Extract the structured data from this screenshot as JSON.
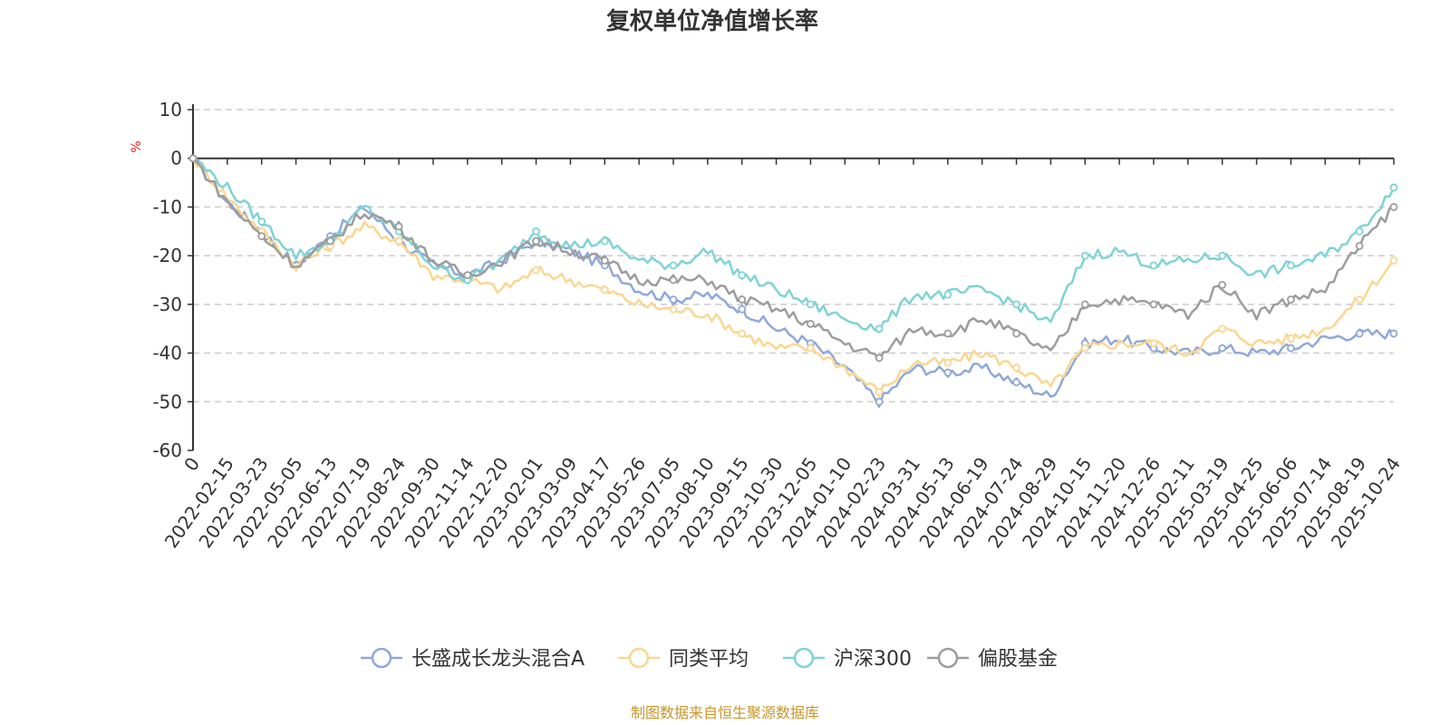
{
  "chart_data": {
    "type": "line",
    "title": "复权单位净值增长率",
    "ylabel": "%",
    "ylim": [
      -60,
      10
    ],
    "yticks": [
      10,
      0,
      -10,
      -20,
      -30,
      -40,
      -50,
      -60
    ],
    "categories": [
      "0",
      "2022-02-15",
      "2022-03-23",
      "2022-05-05",
      "2022-06-13",
      "2022-07-19",
      "2022-08-24",
      "2022-09-30",
      "2022-11-14",
      "2022-12-20",
      "2023-02-01",
      "2023-03-09",
      "2023-04-17",
      "2023-05-26",
      "2023-07-05",
      "2023-08-10",
      "2023-09-15",
      "2023-10-30",
      "2023-12-05",
      "2024-01-10",
      "2024-02-23",
      "2024-03-31",
      "2024-05-13",
      "2024-06-19",
      "2024-07-24",
      "2024-08-29",
      "2024-10-15",
      "2024-11-20",
      "2024-12-26",
      "2025-02-11",
      "2025-03-19",
      "2025-04-25",
      "2025-06-06",
      "2025-07-14",
      "2025-08-19",
      "2025-10-24"
    ],
    "grid": true,
    "legend_position": "bottom",
    "series": [
      {
        "name": "长盛成长龙头混合A",
        "color": "#8fa9d8",
        "values": [
          0,
          -9,
          -15,
          -22,
          -16,
          -10,
          -17,
          -22,
          -24,
          -21,
          -17,
          -19,
          -22,
          -27,
          -29,
          -28,
          -31,
          -35,
          -38,
          -43,
          -50,
          -43,
          -44,
          -43,
          -46,
          -49,
          -38,
          -37,
          -39,
          -40,
          -39,
          -40,
          -39,
          -37,
          -36,
          -36
        ]
      },
      {
        "name": "同类平均",
        "color": "#fbd690",
        "values": [
          0,
          -8,
          -15,
          -22,
          -18,
          -14,
          -17,
          -24,
          -25,
          -27,
          -23,
          -25,
          -27,
          -30,
          -31,
          -32,
          -36,
          -39,
          -39,
          -43,
          -48,
          -42,
          -42,
          -40,
          -43,
          -47,
          -39,
          -38,
          -38,
          -40,
          -35,
          -38,
          -37,
          -35,
          -29,
          -21
        ]
      },
      {
        "name": "沪深300",
        "color": "#7fd3d6",
        "values": [
          0,
          -6,
          -13,
          -20,
          -17,
          -10,
          -15,
          -22,
          -25,
          -21,
          -15,
          -18,
          -17,
          -21,
          -22,
          -19,
          -24,
          -27,
          -30,
          -33,
          -35,
          -28,
          -28,
          -27,
          -30,
          -34,
          -20,
          -19,
          -22,
          -21,
          -20,
          -24,
          -22,
          -20,
          -15,
          -6
        ]
      },
      {
        "name": "偏股基金",
        "color": "#9d9d9d",
        "values": [
          0,
          -9,
          -16,
          -22,
          -17,
          -11,
          -14,
          -21,
          -24,
          -21,
          -17,
          -19,
          -21,
          -25,
          -25,
          -25,
          -29,
          -31,
          -34,
          -38,
          -41,
          -35,
          -36,
          -33,
          -36,
          -40,
          -30,
          -29,
          -30,
          -32,
          -26,
          -32,
          -29,
          -27,
          -18,
          -10
        ]
      }
    ]
  },
  "source": "制图数据来自恒生聚源数据库"
}
